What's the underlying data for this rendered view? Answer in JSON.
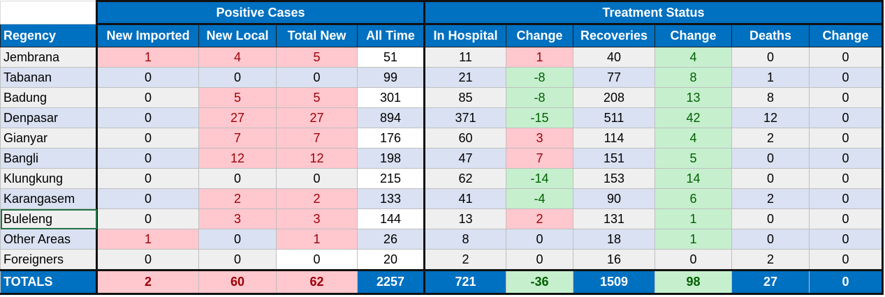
{
  "groups": {
    "positive": "Positive Cases",
    "treatment": "Treatment Status"
  },
  "headers": [
    "Regency",
    "New Imported",
    "New Local",
    "Total New",
    "All Time",
    "In Hospital",
    "Change",
    "Recoveries",
    "Change",
    "Deaths",
    "Change"
  ],
  "rows": [
    {
      "cells": [
        "Jembrana",
        "1",
        "4",
        "5",
        "51",
        "11",
        "1",
        "40",
        "4",
        "0",
        "0"
      ],
      "styles": [
        "gray",
        "pink",
        "pink",
        "pink",
        "white",
        "gray",
        "pink",
        "gray",
        "green",
        "gray",
        "gray"
      ]
    },
    {
      "cells": [
        "Tabanan",
        "0",
        "0",
        "0",
        "99",
        "21",
        "-8",
        "77",
        "8",
        "1",
        "0"
      ],
      "styles": [
        "blue",
        "blue",
        "blue",
        "blue",
        "blue",
        "blue",
        "green",
        "blue",
        "green",
        "blue",
        "blue"
      ]
    },
    {
      "cells": [
        "Badung",
        "0",
        "5",
        "5",
        "301",
        "85",
        "-8",
        "208",
        "13",
        "8",
        "0"
      ],
      "styles": [
        "gray",
        "gray",
        "pink",
        "pink",
        "white",
        "gray",
        "green",
        "gray",
        "green",
        "gray",
        "gray"
      ]
    },
    {
      "cells": [
        "Denpasar",
        "0",
        "27",
        "27",
        "894",
        "371",
        "-15",
        "511",
        "42",
        "12",
        "0"
      ],
      "styles": [
        "blue",
        "blue",
        "pink",
        "pink",
        "blue",
        "blue",
        "green",
        "blue",
        "green",
        "blue",
        "blue"
      ]
    },
    {
      "cells": [
        "Gianyar",
        "0",
        "7",
        "7",
        "176",
        "60",
        "3",
        "114",
        "4",
        "2",
        "0"
      ],
      "styles": [
        "gray",
        "gray",
        "pink",
        "pink",
        "white",
        "gray",
        "pink",
        "gray",
        "green",
        "gray",
        "gray"
      ]
    },
    {
      "cells": [
        "Bangli",
        "0",
        "12",
        "12",
        "198",
        "47",
        "7",
        "151",
        "5",
        "0",
        "0"
      ],
      "styles": [
        "blue",
        "blue",
        "pink",
        "pink",
        "blue",
        "blue",
        "pink",
        "blue",
        "green",
        "blue",
        "blue"
      ]
    },
    {
      "cells": [
        "Klungkung",
        "0",
        "0",
        "0",
        "215",
        "62",
        "-14",
        "153",
        "14",
        "0",
        "0"
      ],
      "styles": [
        "gray",
        "gray",
        "gray",
        "gray",
        "white",
        "gray",
        "green",
        "gray",
        "green",
        "gray",
        "gray"
      ]
    },
    {
      "cells": [
        "Karangasem",
        "0",
        "2",
        "2",
        "133",
        "41",
        "-4",
        "90",
        "6",
        "2",
        "0"
      ],
      "styles": [
        "blue",
        "blue",
        "pink",
        "pink",
        "blue",
        "blue",
        "green",
        "blue",
        "green",
        "blue",
        "blue"
      ]
    },
    {
      "cells": [
        "Buleleng",
        "0",
        "3",
        "3",
        "144",
        "13",
        "2",
        "131",
        "1",
        "0",
        "0"
      ],
      "styles": [
        "gray sel",
        "gray",
        "pink",
        "pink",
        "white",
        "gray",
        "pink",
        "gray",
        "green",
        "gray",
        "gray"
      ]
    },
    {
      "cells": [
        "Other Areas",
        "1",
        "0",
        "1",
        "26",
        "8",
        "0",
        "18",
        "1",
        "0",
        "0"
      ],
      "styles": [
        "blue",
        "pink",
        "blue",
        "pink",
        "blue",
        "blue",
        "blue",
        "blue",
        "green",
        "blue",
        "blue"
      ]
    },
    {
      "cells": [
        "Foreigners",
        "0",
        "0",
        "0",
        "20",
        "2",
        "0",
        "16",
        "0",
        "2",
        "0"
      ],
      "styles": [
        "gray",
        "gray",
        "gray",
        "white",
        "white",
        "gray",
        "gray",
        "gray",
        "gray",
        "gray",
        "gray"
      ]
    }
  ],
  "totals": {
    "cells": [
      "TOTALS",
      "2",
      "60",
      "62",
      "2257",
      "721",
      "-36",
      "1509",
      "98",
      "27",
      "0"
    ],
    "styles": [
      "blueb",
      "pinkb",
      "pinkb",
      "pinkb",
      "blueb",
      "blueb",
      "greenb",
      "blueb",
      "greenb",
      "blueb",
      "blueb"
    ]
  }
}
